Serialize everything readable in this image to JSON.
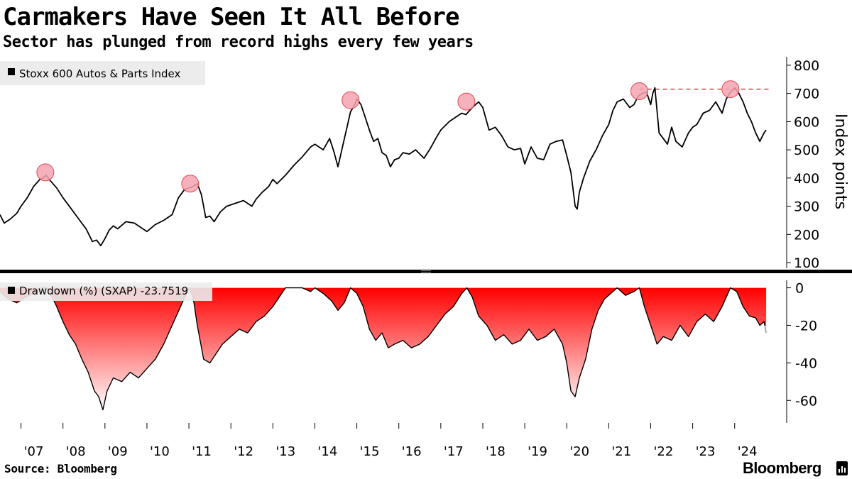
{
  "title": "Carmakers Have Seen It All Before",
  "subtitle": "Sector has plunged from record highs every few years",
  "source": "Source: Bloomberg",
  "brand": "Bloomberg",
  "chart_data": [
    {
      "type": "line",
      "legend": "Stoxx 600 Autos & Parts Index",
      "ylabel": "Index points",
      "ylim": [
        80,
        830
      ],
      "yticks": [
        100,
        200,
        300,
        400,
        500,
        600,
        700,
        800
      ],
      "x_range": [
        2006.5,
        2024.85
      ],
      "line_color": "#000000",
      "series": [
        {
          "name": "Stoxx 600 Autos & Parts Index",
          "x": [
            2006.5,
            2006.6,
            2006.75,
            2006.9,
            2007.0,
            2007.15,
            2007.3,
            2007.45,
            2007.52,
            2007.6,
            2007.7,
            2007.85,
            2008.0,
            2008.15,
            2008.3,
            2008.4,
            2008.55,
            2008.7,
            2008.8,
            2008.9,
            2009.0,
            2009.1,
            2009.2,
            2009.3,
            2009.5,
            2009.7,
            2009.85,
            2010.0,
            2010.2,
            2010.4,
            2010.6,
            2010.75,
            2010.9,
            2011.0,
            2011.1,
            2011.2,
            2011.3,
            2011.4,
            2011.5,
            2011.6,
            2011.75,
            2011.9,
            2012.1,
            2012.3,
            2012.5,
            2012.6,
            2012.75,
            2012.9,
            2013.0,
            2013.1,
            2013.3,
            2013.5,
            2013.7,
            2013.9,
            2014.0,
            2014.2,
            2014.35,
            2014.45,
            2014.55,
            2014.65,
            2014.75,
            2014.85,
            2014.95,
            2015.0,
            2015.1,
            2015.2,
            2015.3,
            2015.4,
            2015.5,
            2015.6,
            2015.7,
            2015.8,
            2015.9,
            2016.0,
            2016.1,
            2016.25,
            2016.4,
            2016.6,
            2016.75,
            2016.9,
            2017.0,
            2017.2,
            2017.35,
            2017.5,
            2017.6,
            2017.75,
            2017.9,
            2018.0,
            2018.15,
            2018.3,
            2018.45,
            2018.6,
            2018.75,
            2018.9,
            2019.0,
            2019.15,
            2019.3,
            2019.45,
            2019.6,
            2019.75,
            2019.9,
            2020.0,
            2020.1,
            2020.2,
            2020.25,
            2020.3,
            2020.4,
            2020.55,
            2020.7,
            2020.85,
            2021.0,
            2021.1,
            2021.2,
            2021.35,
            2021.5,
            2021.6,
            2021.7,
            2021.8,
            2021.9,
            2022.0,
            2022.05,
            2022.1,
            2022.2,
            2022.3,
            2022.4,
            2022.5,
            2022.6,
            2022.75,
            2022.9,
            2023.0,
            2023.1,
            2023.25,
            2023.4,
            2023.55,
            2023.7,
            2023.8,
            2023.9,
            2024.0,
            2024.1,
            2024.2,
            2024.3,
            2024.4,
            2024.5,
            2024.6,
            2024.7,
            2024.75
          ],
          "y": [
            270,
            240,
            255,
            275,
            300,
            330,
            370,
            395,
            400,
            410,
            390,
            365,
            330,
            300,
            270,
            250,
            220,
            175,
            180,
            160,
            185,
            215,
            230,
            220,
            245,
            240,
            225,
            210,
            235,
            250,
            270,
            330,
            360,
            365,
            370,
            380,
            340,
            260,
            265,
            245,
            280,
            300,
            310,
            320,
            300,
            325,
            350,
            370,
            395,
            380,
            410,
            445,
            475,
            510,
            520,
            500,
            540,
            495,
            440,
            505,
            570,
            635,
            660,
            680,
            660,
            615,
            570,
            530,
            540,
            490,
            480,
            440,
            465,
            470,
            490,
            485,
            500,
            470,
            505,
            545,
            570,
            600,
            615,
            630,
            625,
            650,
            670,
            650,
            570,
            580,
            550,
            510,
            500,
            505,
            450,
            510,
            470,
            465,
            520,
            530,
            535,
            480,
            420,
            300,
            290,
            350,
            400,
            460,
            500,
            550,
            590,
            640,
            670,
            680,
            650,
            660,
            690,
            700,
            705,
            660,
            700,
            720,
            560,
            540,
            520,
            580,
            530,
            510,
            560,
            580,
            590,
            630,
            640,
            670,
            630,
            680,
            705,
            720,
            700,
            670,
            630,
            600,
            560,
            530,
            560,
            570
          ]
        }
      ],
      "peak_markers": [
        {
          "x": 2007.58,
          "y": 420
        },
        {
          "x": 2011.03,
          "y": 380
        },
        {
          "x": 2014.85,
          "y": 676
        },
        {
          "x": 2017.61,
          "y": 671
        },
        {
          "x": 2021.73,
          "y": 708
        },
        {
          "x": 2023.9,
          "y": 715
        }
      ],
      "reference_line": {
        "y": 715,
        "x_start": 2021.73,
        "x_end": 2024.85,
        "color": "#e8464f"
      }
    },
    {
      "type": "area",
      "legend": "Drawdown (%) (SXAP) -23.7519",
      "ylim": [
        -72,
        4
      ],
      "yticks": [
        0,
        -20,
        -40,
        -60
      ],
      "x_range": [
        2006.5,
        2024.85
      ],
      "fill_top_color": "#ff0000",
      "fill_bottom_color": "#ffffff",
      "series": [
        {
          "name": "Drawdown (%) (SXAP)",
          "x": [
            2006.5,
            2006.7,
            2006.9,
            2007.1,
            2007.3,
            2007.5,
            2007.6,
            2007.7,
            2007.85,
            2008.0,
            2008.15,
            2008.3,
            2008.45,
            2008.6,
            2008.75,
            2008.85,
            2008.95,
            2009.05,
            2009.2,
            2009.4,
            2009.6,
            2009.8,
            2010.0,
            2010.2,
            2010.4,
            2010.6,
            2010.8,
            2011.0,
            2011.1,
            2011.2,
            2011.35,
            2011.5,
            2011.65,
            2011.8,
            2012.0,
            2012.2,
            2012.4,
            2012.6,
            2012.8,
            2013.0,
            2013.15,
            2013.3,
            2013.5,
            2013.7,
            2013.9,
            2014.0,
            2014.2,
            2014.4,
            2014.55,
            2014.7,
            2014.85,
            2015.0,
            2015.15,
            2015.3,
            2015.45,
            2015.6,
            2015.75,
            2015.9,
            2016.1,
            2016.3,
            2016.5,
            2016.7,
            2016.9,
            2017.1,
            2017.3,
            2017.5,
            2017.62,
            2017.75,
            2017.9,
            2018.1,
            2018.3,
            2018.5,
            2018.7,
            2018.9,
            2019.1,
            2019.3,
            2019.5,
            2019.7,
            2019.9,
            2020.0,
            2020.1,
            2020.2,
            2020.3,
            2020.45,
            2020.6,
            2020.75,
            2020.9,
            2021.05,
            2021.2,
            2021.4,
            2021.6,
            2021.73,
            2021.85,
            2022.0,
            2022.15,
            2022.3,
            2022.5,
            2022.7,
            2022.9,
            2023.1,
            2023.3,
            2023.5,
            2023.7,
            2023.9,
            2024.05,
            2024.2,
            2024.35,
            2024.5,
            2024.6,
            2024.7,
            2024.75
          ],
          "y": [
            -2,
            -6,
            -8,
            -5,
            -3,
            0,
            0,
            -3,
            -10,
            -18,
            -25,
            -30,
            -38,
            -45,
            -55,
            -58,
            -65,
            -55,
            -48,
            -50,
            -45,
            -48,
            -43,
            -38,
            -30,
            -20,
            -10,
            0,
            -5,
            -20,
            -38,
            -40,
            -35,
            -30,
            -26,
            -22,
            -24,
            -18,
            -15,
            -10,
            -5,
            0,
            0,
            0,
            -2,
            0,
            -3,
            -7,
            -12,
            -8,
            0,
            -3,
            -10,
            -22,
            -28,
            -24,
            -32,
            -30,
            -28,
            -32,
            -30,
            -26,
            -20,
            -14,
            -10,
            -3,
            0,
            -5,
            -15,
            -20,
            -28,
            -25,
            -30,
            -28,
            -22,
            -28,
            -26,
            -22,
            -30,
            -40,
            -55,
            -58,
            -48,
            -38,
            -22,
            -12,
            -6,
            -3,
            0,
            -4,
            -2,
            0,
            -10,
            -20,
            -30,
            -26,
            -28,
            -20,
            -26,
            -18,
            -14,
            -18,
            -10,
            0,
            -2,
            -10,
            -15,
            -16,
            -20,
            -18,
            -24
          ]
        }
      ],
      "latest_marker": {
        "x": 2024.75,
        "y": -23.75
      }
    }
  ],
  "x_axis": {
    "tick_labels": [
      "'07",
      "'08",
      "'09",
      "'10",
      "'11",
      "'12",
      "'13",
      "'14",
      "'15",
      "'16",
      "'17",
      "'18",
      "'19",
      "'20",
      "'21",
      "'22",
      "'23",
      "'24"
    ],
    "tick_years": [
      2007,
      2008,
      2009,
      2010,
      2011,
      2012,
      2013,
      2014,
      2015,
      2016,
      2017,
      2018,
      2019,
      2020,
      2021,
      2022,
      2023,
      2024
    ]
  },
  "colors": {
    "marker_fill": "#f3a4b0",
    "marker_stroke": "#e8464f",
    "legend_bg": "#ececec",
    "divider": "#000000",
    "axis": "#000000"
  }
}
